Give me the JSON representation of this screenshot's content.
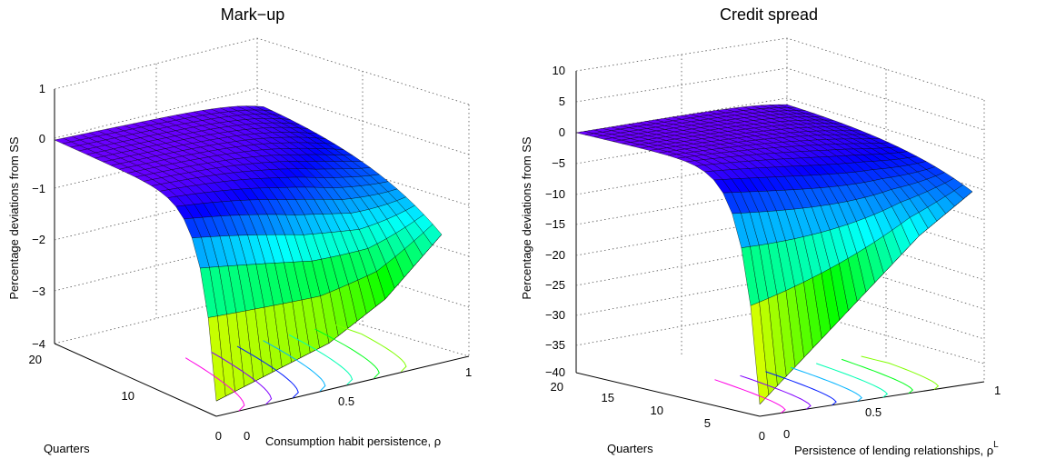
{
  "chart_data": [
    {
      "type": "surface",
      "title": "Mark−up",
      "zlabel": "Percentage deviations from SS",
      "ylabel": "Quarters",
      "xlabel": "Consumption habit persistence, ρ",
      "zlim": [
        -4,
        1
      ],
      "ylim": [
        0,
        20
      ],
      "xlim": [
        0,
        1
      ],
      "z_ticks": [
        "1",
        "0",
        "−1",
        "−2",
        "−3",
        "−4"
      ],
      "y_ticks": [
        "20",
        "10",
        "0"
      ],
      "x_ticks": [
        "0",
        "0.5",
        "1"
      ],
      "grid": true,
      "colormap": "hsv",
      "description_series": [
        {
          "x": 0.0,
          "impact": -3.7,
          "steady": 0.0
        },
        {
          "x": 0.25,
          "impact": -3.4,
          "steady": 0.0
        },
        {
          "x": 0.5,
          "impact": -3.1,
          "steady": 0.0
        },
        {
          "x": 0.75,
          "impact": -2.5,
          "steady": 0.0
        },
        {
          "x": 1.0,
          "impact": -1.5,
          "steady": 0.0
        }
      ]
    },
    {
      "type": "surface",
      "title": "Credit spread",
      "zlabel": "Percentage deviations from SS",
      "ylabel": "Quarters",
      "xlabel": "Persistence of lending relationships, ρ",
      "xlabel_sup": "L",
      "zlim": [
        -40,
        10
      ],
      "ylim": [
        0,
        20
      ],
      "xlim": [
        0,
        1
      ],
      "z_ticks": [
        "10",
        "5",
        "0",
        "−5",
        "−10",
        "−15",
        "−20",
        "−25",
        "−30",
        "−35",
        "−40"
      ],
      "y_ticks": [
        "20",
        "15",
        "10",
        "5",
        "0"
      ],
      "x_ticks": [
        "0",
        "0.5",
        "1"
      ],
      "grid": true,
      "colormap": "hsv",
      "description_series": [
        {
          "x": 0.0,
          "impact": -38.0,
          "steady": 0.0
        },
        {
          "x": 0.25,
          "impact": -30.0,
          "steady": 0.0
        },
        {
          "x": 0.5,
          "impact": -22.0,
          "steady": 0.0
        },
        {
          "x": 0.75,
          "impact": -14.0,
          "steady": 0.0
        },
        {
          "x": 1.0,
          "impact": -8.0,
          "steady": 0.0
        }
      ]
    }
  ]
}
